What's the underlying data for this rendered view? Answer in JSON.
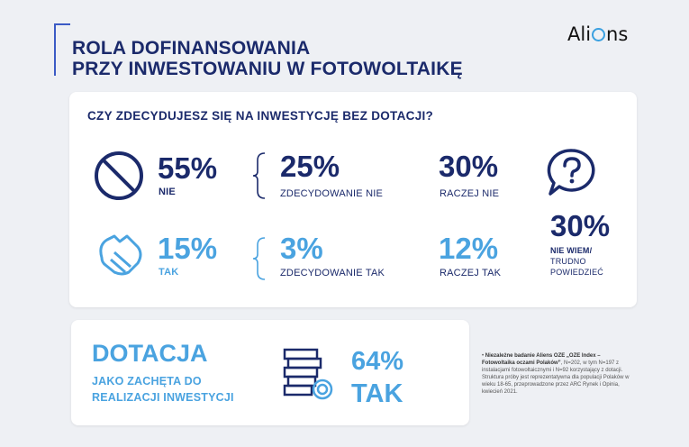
{
  "header": {
    "title_line1": "ROLA DOFINANSOWANIA",
    "title_line2": "PRZY INWESTOWANIU W FOTOWOLTAIKĘ",
    "logo_left": "Ali",
    "logo_right": "ns"
  },
  "question": "CZY ZDECYDUJESZ SIĘ NA INWESTYCJĘ BEZ DOTACJI?",
  "no": {
    "pct": "55%",
    "label": "NIE",
    "sub1_pct": "25%",
    "sub1_label": "ZDECYDOWANIE NIE",
    "sub2_pct": "30%",
    "sub2_label": "RACZEJ NIE"
  },
  "yes": {
    "pct": "15%",
    "label": "TAK",
    "sub1_pct": "3%",
    "sub1_label": "ZDECYDOWANIE TAK",
    "sub2_pct": "12%",
    "sub2_label": "RACZEJ TAK"
  },
  "dontknow": {
    "pct": "30%",
    "label1": "NIE WIEM/",
    "label2": "TRUDNO",
    "label3": "POWIEDZIEĆ"
  },
  "subsidy": {
    "title": "DOTACJA",
    "sub1": "JAKO ZACHĘTA DO",
    "sub2": "REALIZACJI INWESTYCJI",
    "pct": "64%",
    "label": "TAK"
  },
  "footnote": {
    "bold": "Niezależne badanie Aliens OZE „OZE Index – Fotowoltaika oczami Polaków”",
    "text": ", N=202, w tym N=197 z instalacjami fotowoltaicznymi i N=92 korzystający z dotacji. Struktura próby jest reprezentatywna dla populacji Polaków w wieku 18-65, przeprowadzone przez ARC Rynek i Opinia, kwiecień 2021."
  },
  "colors": {
    "navy": "#1b2a6b",
    "blue": "#4aa3e0",
    "accent": "#3b5bc5"
  },
  "icons": [
    "no-entry-icon",
    "handshake-icon",
    "question-bubble-icon",
    "coins-stack-icon"
  ]
}
